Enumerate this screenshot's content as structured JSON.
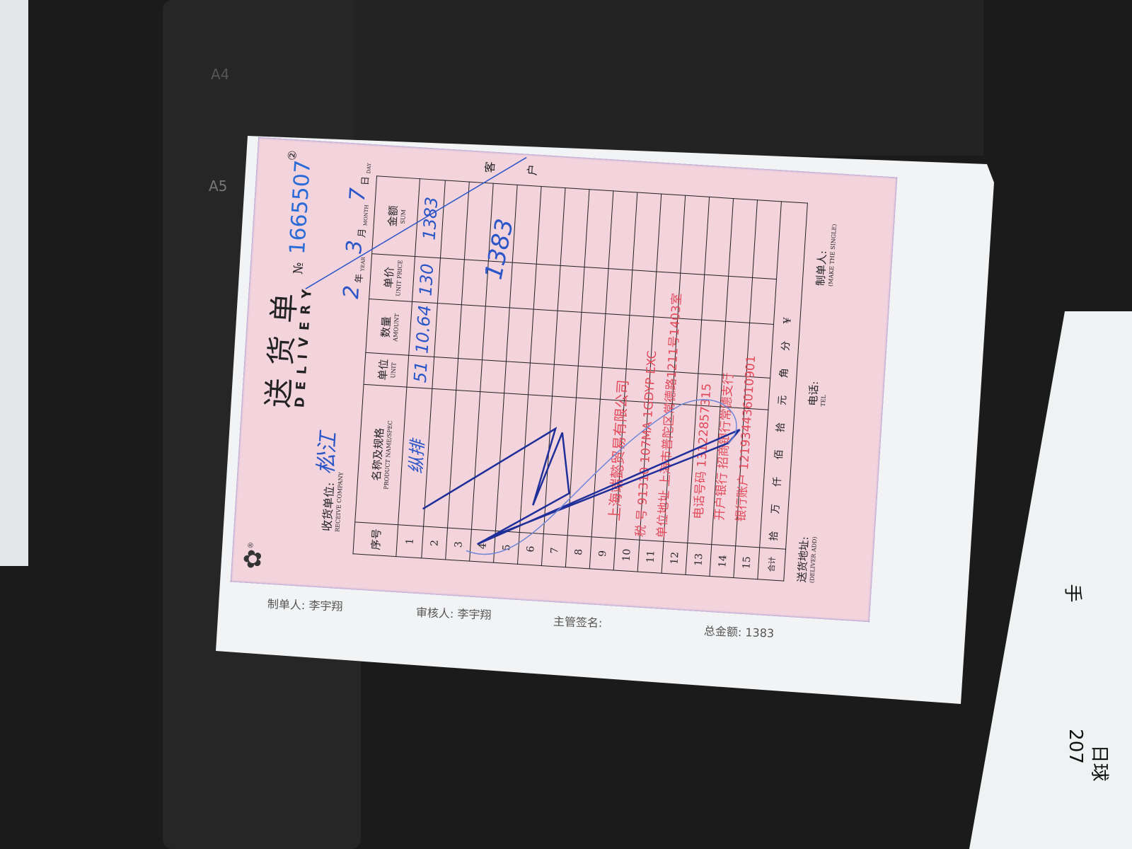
{
  "colors": {
    "receipt": "#f3d3dc",
    "ink": "#2a56c8",
    "stamp": "#e24a5a",
    "desk": "#1b1b1b"
  },
  "tray_labels": [
    "A4",
    "A5"
  ],
  "receipt": {
    "logo_mark": "®",
    "title": "送货单",
    "title_en": "DELIVERY",
    "no_label": "№",
    "no": "1665507",
    "receive_company_label": "收货单位:",
    "receive_company_label_en": "RECEIVE COMPANY",
    "receive_company": "松江",
    "date": {
      "year": "2",
      "year_label": "年",
      "year_en": "YEAR",
      "month": "3",
      "month_label": "月",
      "month_en": "MONTH",
      "day": "7",
      "day_label": "日",
      "day_en": "DAY"
    },
    "columns": [
      {
        "cn": "序号",
        "en": ""
      },
      {
        "cn": "名称及规格",
        "en": "PRODUCT NAME/SPEC"
      },
      {
        "cn": "单位",
        "en": "UNIT"
      },
      {
        "cn": "数量",
        "en": "AMOUNT"
      },
      {
        "cn": "单价",
        "en": "UNIT PRICE"
      },
      {
        "cn": "金额",
        "en": "SUM"
      }
    ],
    "rows": [
      {
        "no": "1",
        "name": "纵排",
        "unit": "51",
        "amount": "10.64",
        "price": "130",
        "sum": "1383"
      },
      {
        "no": "2"
      },
      {
        "no": "3"
      },
      {
        "no": "4"
      },
      {
        "no": "5"
      },
      {
        "no": "6"
      },
      {
        "no": "7"
      },
      {
        "no": "8"
      },
      {
        "no": "9"
      },
      {
        "no": "10"
      },
      {
        "no": "11"
      },
      {
        "no": "12"
      },
      {
        "no": "13"
      },
      {
        "no": "14"
      },
      {
        "no": "15"
      }
    ],
    "total_label": "合计",
    "total_units": [
      "拾",
      "万",
      "仟",
      "佰",
      "拾",
      "元",
      "角",
      "分"
    ],
    "total_currency": "¥",
    "handwritten_total": "1383",
    "copy_mark": "②",
    "copy_label": "客户",
    "deliver_add_label": "送货地址:",
    "deliver_add_label_en": "(DELIVER ADD)",
    "tel_label": "电话:",
    "tel_label_en": "TEL",
    "maker_label": "制单人:",
    "maker_label_en": "(MAKE THE SINGLE)",
    "stamp": [
      "上海端懿贸易有限公司",
      "税    号 91310 107MA 1GDYP EXC",
      "单位地址 上海市普陀区常德路1211号1403室",
      "电话号码 13122857315",
      "开户银行 招商银行常德支行",
      "银行账户 121934436010901"
    ]
  },
  "underlying_sheet": {
    "maker": "制单人:  李宇翔",
    "reviewer": "审核人:  李宇翔",
    "supervisor": "主管签名:",
    "total": "总金额:  1383"
  },
  "side_note": [
    "207",
    "日球",
    "手"
  ]
}
